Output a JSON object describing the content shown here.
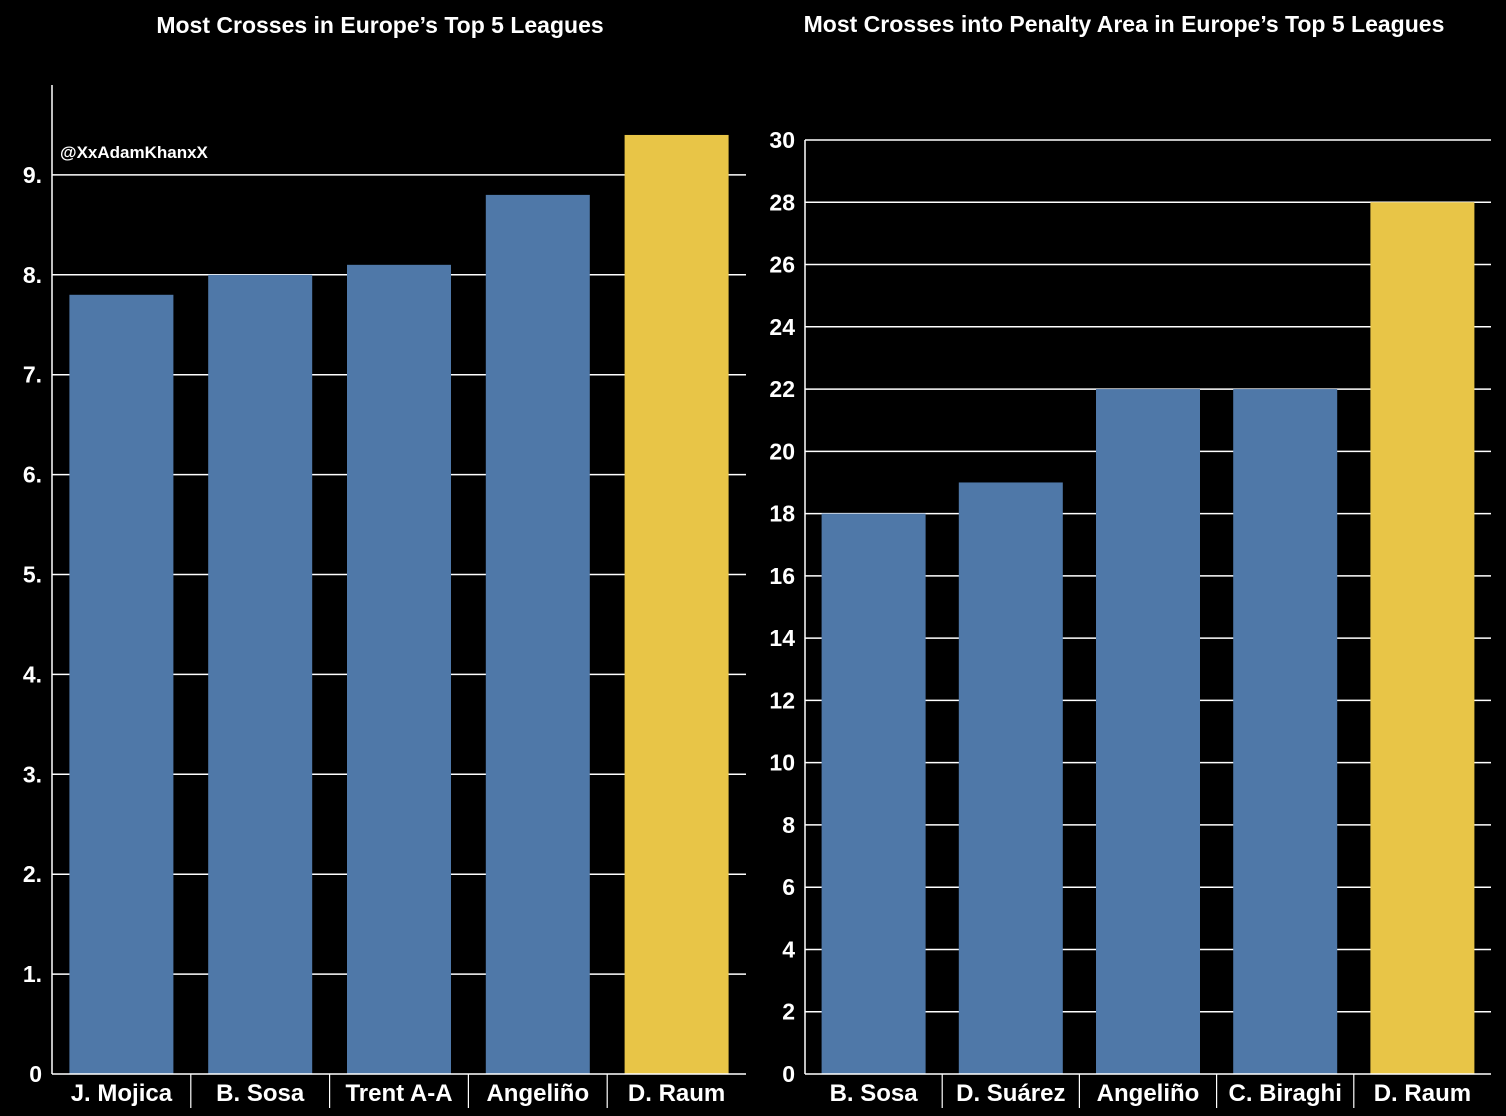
{
  "colors": {
    "background": "#000000",
    "bar": "#4f78a8",
    "highlight": "#e8c547",
    "text": "#ffffff",
    "grid": "#ffffff"
  },
  "watermark": "@XxAdamKhanxX",
  "chart_data": [
    {
      "type": "bar",
      "title": "Most Crosses in Europe’s Top 5 Leagues",
      "xlabel": "",
      "ylabel": "",
      "categories": [
        "J. Mojica",
        "B. Sosa",
        "Trent A-A",
        "Angeliño",
        "D. Raum"
      ],
      "values": [
        7.8,
        8.0,
        8.1,
        8.8,
        9.4
      ],
      "highlight": [
        "D. Raum"
      ],
      "ylim": [
        0,
        9.9
      ],
      "yticks": [
        0,
        1,
        2,
        3,
        4,
        5,
        6,
        7,
        8,
        9
      ],
      "ytick_labels": [
        "0",
        "1.",
        "2.",
        "3.",
        "4.",
        "5.",
        "6.",
        "7.",
        "8.",
        "9."
      ],
      "grid": true
    },
    {
      "type": "bar",
      "title": "Most Crosses into Penalty Area in Europe’s Top 5 Leagues",
      "xlabel": "",
      "ylabel": "",
      "categories": [
        "B. Sosa",
        "D. Suárez",
        "Angeliño",
        "C. Biraghi",
        "D. Raum"
      ],
      "values": [
        18,
        19,
        22,
        22,
        28
      ],
      "highlight": [
        "D. Raum"
      ],
      "ylim": [
        0,
        30
      ],
      "yticks": [
        0,
        2,
        4,
        6,
        8,
        10,
        12,
        14,
        16,
        18,
        20,
        22,
        24,
        26,
        28,
        30
      ],
      "ytick_labels": [
        "0",
        "2",
        "4",
        "6",
        "8",
        "10",
        "12",
        "14",
        "16",
        "18",
        "20",
        "22",
        "24",
        "26",
        "28",
        "30"
      ],
      "grid": true
    }
  ]
}
